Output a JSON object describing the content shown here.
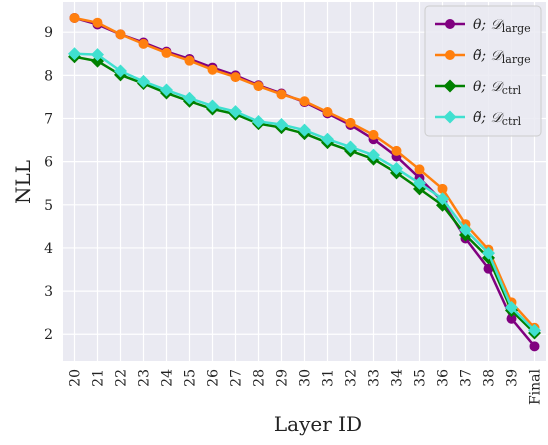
{
  "chart_data": {
    "type": "line",
    "title": "",
    "xlabel": "Layer ID",
    "ylabel": "NLL",
    "categories": [
      "20",
      "21",
      "22",
      "23",
      "24",
      "25",
      "26",
      "27",
      "28",
      "29",
      "30",
      "31",
      "32",
      "33",
      "34",
      "35",
      "36",
      "37",
      "38",
      "39",
      "Final"
    ],
    "ylim": [
      1.38,
      9.7
    ],
    "yticks": [
      2,
      3,
      4,
      5,
      6,
      7,
      8,
      9
    ],
    "grid": true,
    "legend_position": "top-right",
    "series": [
      {
        "name": "θ; 𝒟large",
        "legend_main": "θ; 𝒟",
        "legend_sub": "large",
        "color": "#800080",
        "marker": "circle",
        "values": [
          9.33,
          9.18,
          8.95,
          8.76,
          8.55,
          8.38,
          8.18,
          8.0,
          7.77,
          7.58,
          7.38,
          7.12,
          6.85,
          6.52,
          6.12,
          5.62,
          5.08,
          4.22,
          3.52,
          2.36,
          1.72
        ]
      },
      {
        "name": "θ̃; 𝒟large",
        "legend_main": "θ̃; 𝒟",
        "legend_sub": "large",
        "color": "#ff7f0e",
        "marker": "circle",
        "values": [
          9.33,
          9.22,
          8.95,
          8.73,
          8.52,
          8.34,
          8.13,
          7.96,
          7.75,
          7.56,
          7.4,
          7.15,
          6.9,
          6.62,
          6.25,
          5.82,
          5.37,
          4.55,
          3.96,
          2.74,
          2.15
        ]
      },
      {
        "name": "θ; 𝒟ctrl",
        "legend_main": "θ; 𝒟",
        "legend_sub": "ctrl",
        "color": "#008000",
        "marker": "diamond",
        "values": [
          8.43,
          8.33,
          8.01,
          7.81,
          7.59,
          7.4,
          7.22,
          7.1,
          6.88,
          6.79,
          6.65,
          6.44,
          6.25,
          6.06,
          5.74,
          5.37,
          4.99,
          4.3,
          3.77,
          2.55,
          2.03
        ]
      },
      {
        "name": "θ̃; 𝒟ctrl",
        "legend_main": "θ̃; 𝒟",
        "legend_sub": "ctrl",
        "color": "#40e0d0",
        "marker": "diamond",
        "values": [
          8.5,
          8.48,
          8.1,
          7.86,
          7.66,
          7.47,
          7.29,
          7.16,
          6.93,
          6.86,
          6.73,
          6.52,
          6.34,
          6.15,
          5.84,
          5.5,
          5.14,
          4.42,
          3.88,
          2.62,
          2.09
        ]
      }
    ]
  }
}
